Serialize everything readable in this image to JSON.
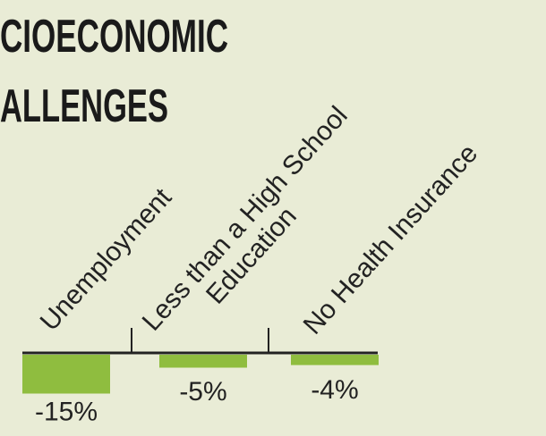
{
  "chart_data": {
    "type": "bar",
    "title_lines": [
      "CIOECONOMIC",
      "ALLENGES"
    ],
    "categories": [
      "Unemployment",
      "Less than a High School\nEducation",
      "No Health Insurance"
    ],
    "values": [
      -15,
      -5,
      -4
    ],
    "value_labels": [
      "-15%",
      "-5%",
      "-4%"
    ],
    "color": "#8fbd3f"
  }
}
